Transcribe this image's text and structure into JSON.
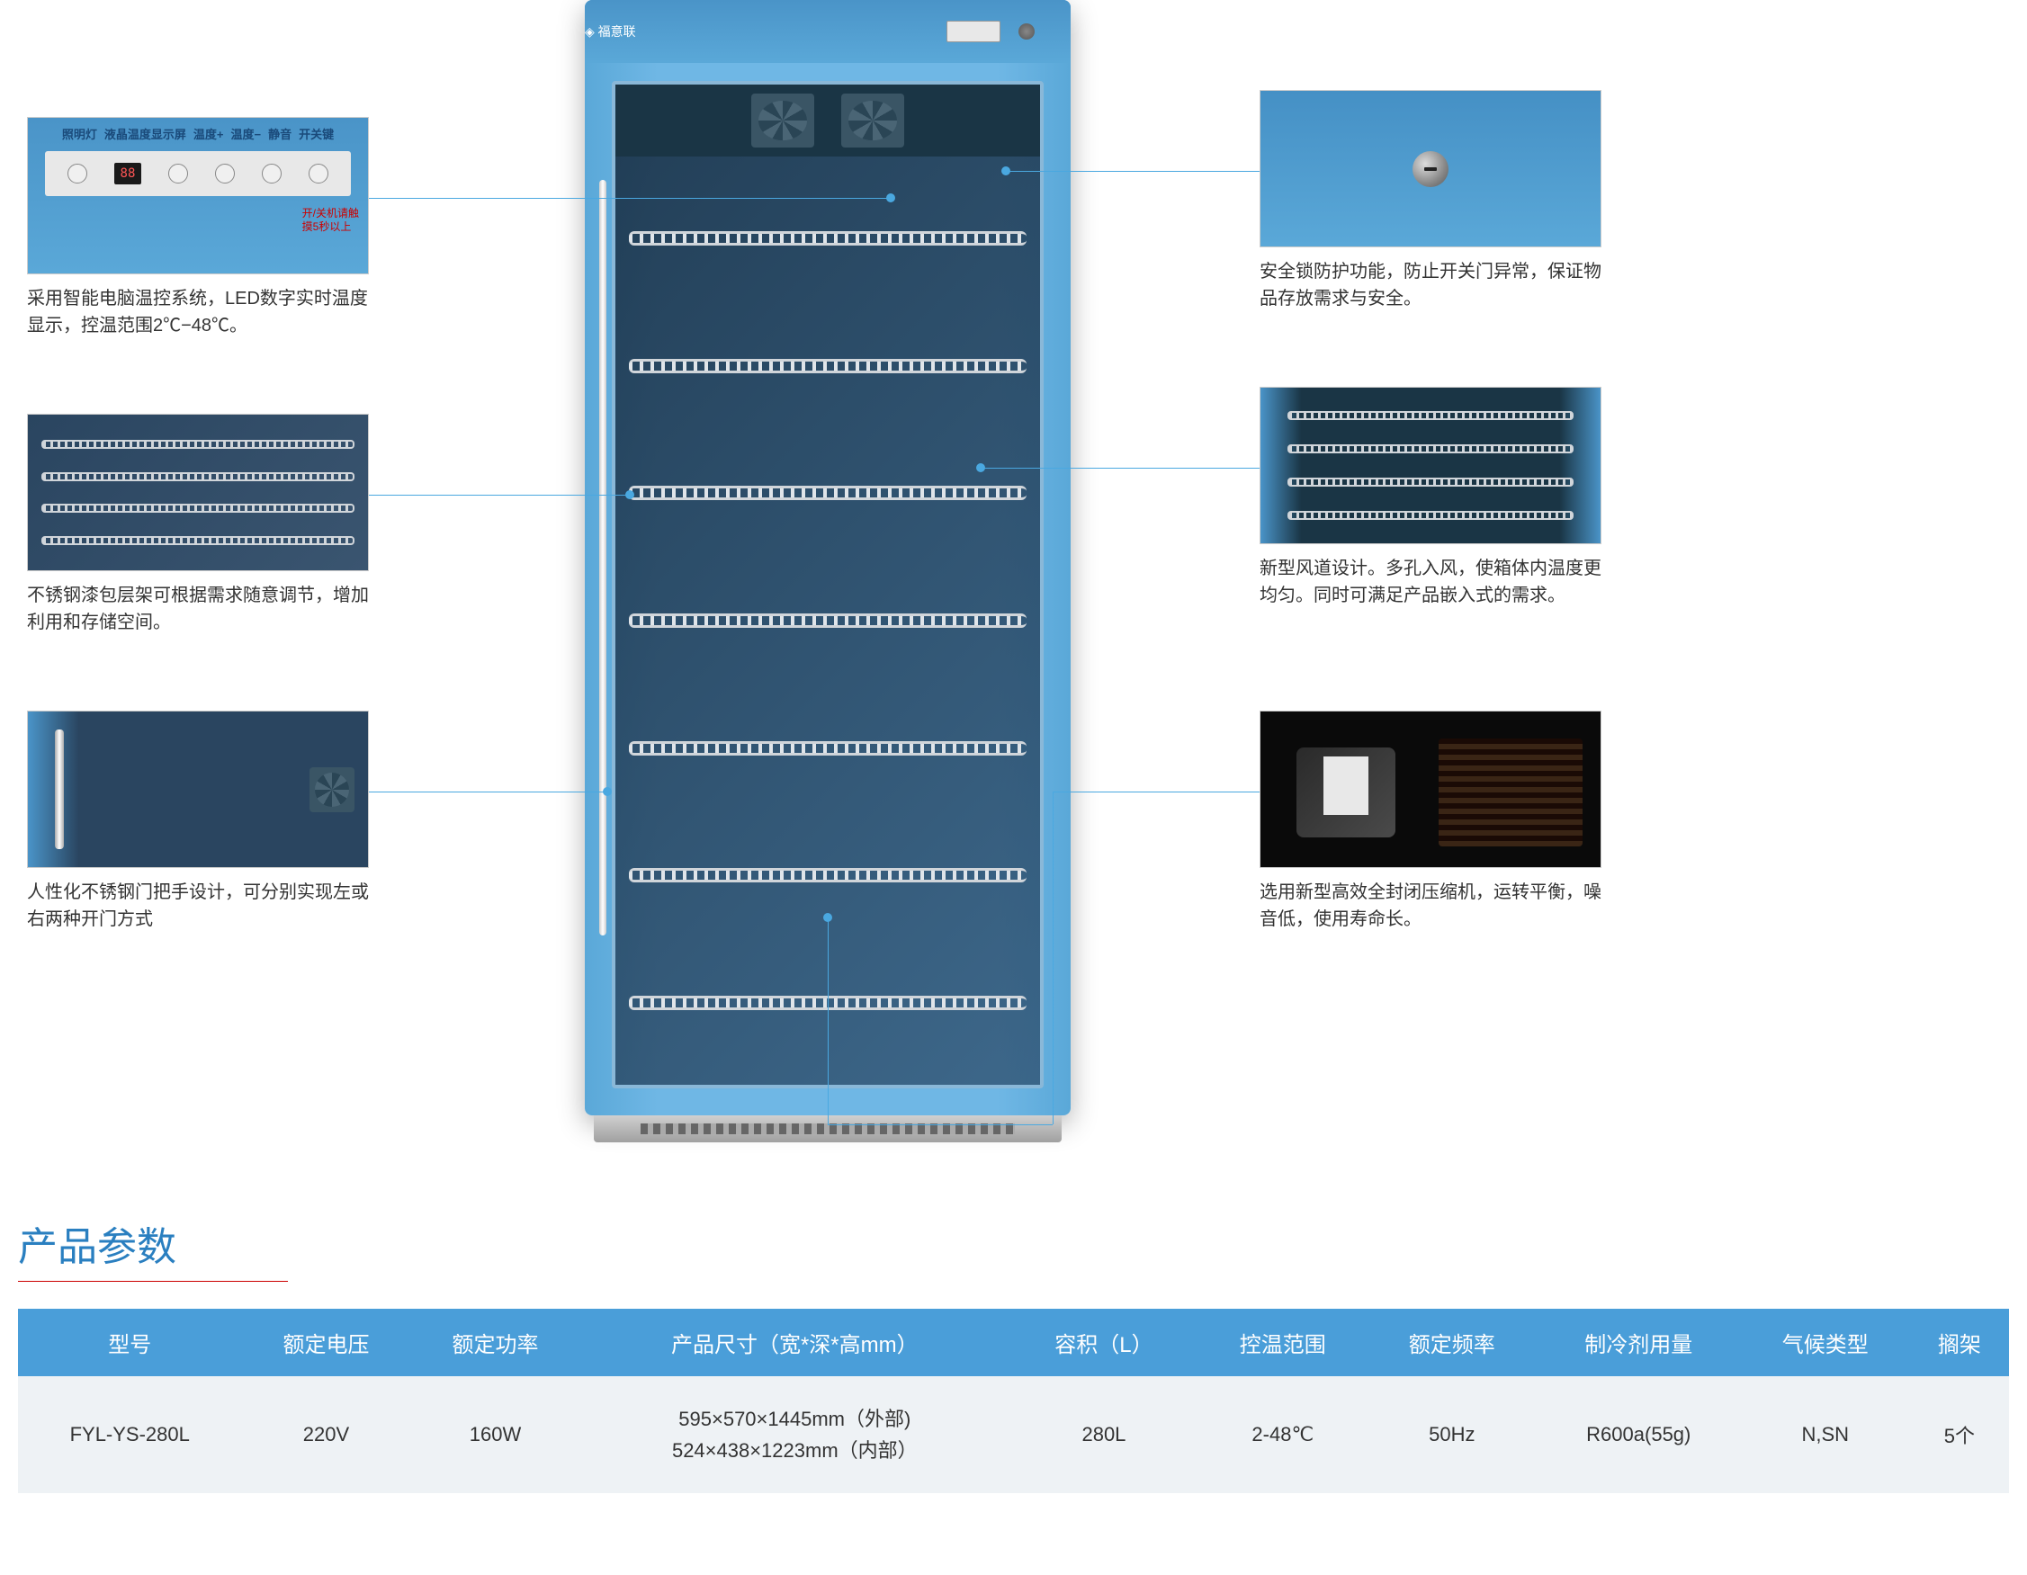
{
  "colors": {
    "accent": "#4aa8e0",
    "fridge_body": "#5aa8d8",
    "table_header": "#4a9ed9",
    "table_row": "#eef2f5",
    "title": "#2a7fc0",
    "underline": "#c00"
  },
  "panel": {
    "labels": [
      "照明灯",
      "液晶温度显示屏",
      "温度+",
      "温度−",
      "静音",
      "开关键"
    ],
    "led_value": "88",
    "hint_line1": "开/关机请触",
    "hint_line2": "摸5秒以上"
  },
  "features_left": [
    {
      "text": "采用智能电脑温控系统，LED数字实时温度显示，控温范围2℃−48℃。"
    },
    {
      "text": "不锈钢漆包层架可根据需求随意调节，增加利用和存储空间。"
    },
    {
      "text": "人性化不锈钢门把手设计，可分别实现左或右两种开门方式"
    }
  ],
  "features_right": [
    {
      "text": "安全锁防护功能，防止开关门异常，保证物品存放需求与安全。"
    },
    {
      "text": "新型风道设计。多孔入风，使箱体内温度更均匀。同时可满足产品嵌入式的需求。"
    },
    {
      "text": "选用新型高效全封闭压缩机，运转平衡，噪音低，使用寿命长。"
    }
  ],
  "spec_title": "产品参数",
  "spec_headers": [
    "型号",
    "额定电压",
    "额定功率",
    "产品尺寸（宽*深*高mm）",
    "容积（L）",
    "控温范围",
    "额定频率",
    "制冷剂用量",
    "气候类型",
    "搁架"
  ],
  "spec_row": {
    "model": "FYL-YS-280L",
    "voltage": "220V",
    "power": "160W",
    "dim_outer": "595×570×1445mm（外部)",
    "dim_inner": "524×438×1223mm（内部）",
    "capacity": "280L",
    "temp_range": "2-48℃",
    "frequency": "50Hz",
    "refrigerant": "R600a(55g)",
    "climate": "N,SN",
    "shelves": "5个"
  },
  "shelf_count": 7
}
